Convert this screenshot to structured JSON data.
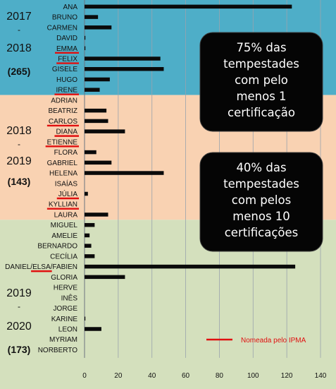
{
  "chart_data": {
    "type": "bar",
    "orientation": "horizontal",
    "grid": "vertical",
    "xlim": [
      0,
      140
    ],
    "xticks": [
      "0",
      "20",
      "40",
      "60",
      "80",
      "100",
      "120",
      "140"
    ],
    "categories": [
      "ANA",
      "BRUNO",
      "CARMEN",
      "DAVID",
      "EMMA",
      "FELIX",
      "GISELE",
      "HUGO",
      "IRENE",
      "ADRIAN",
      "BEATRIZ",
      "CARLOS",
      "DIANA",
      "ETIENNE",
      "FLORA",
      "GABRIEL",
      "HELENA",
      "ISAÍAS",
      "JÚLIA",
      "KYLLIAN",
      "LAURA",
      "MIGUEL",
      "AMELIE",
      "BERNARDO",
      "CECÍLIA",
      "DANIEL/ELSA/FABIEN",
      "GLORIA",
      "HERVE",
      "INÊS",
      "JORGE",
      "KARINE",
      "LEON",
      "MYRIAM",
      "NORBERTO"
    ],
    "values": [
      123,
      8,
      16,
      0.5,
      0.5,
      45,
      47,
      15,
      9,
      0,
      13,
      14,
      24,
      0,
      7,
      16,
      47,
      0,
      2,
      0,
      14,
      6,
      3,
      4,
      6,
      125,
      24,
      0,
      0,
      0,
      0.5,
      10,
      0,
      0
    ],
    "named_by_ipma": [
      "EMMA",
      "FELIX",
      "IRENE",
      "CARLOS",
      "DIANA",
      "ETIENNE",
      "JÚLIA",
      "KYLLIAN",
      "ELSA"
    ],
    "seasons": [
      {
        "years": [
          "2017",
          "-",
          "2018"
        ],
        "count": "(265)",
        "color": "#4eaec8"
      },
      {
        "years": [
          "2018",
          "-",
          "2019"
        ],
        "count": "(143)",
        "color": "#f9d2b2"
      },
      {
        "years": [
          "2019",
          "-",
          "2020"
        ],
        "count": "(173)",
        "color": "#d4e0bd"
      }
    ],
    "annotations": [
      {
        "lines": [
          "75% das",
          "tempestades",
          "com pelo",
          "menos 1",
          "certificação"
        ]
      },
      {
        "lines": [
          "40% das",
          "tempestades",
          "com pelos",
          "menos 10",
          "certificações"
        ]
      }
    ],
    "legend": {
      "label": "Nomeada pelo IPMA",
      "color": "#e01010",
      "position": "bottom-right"
    },
    "bar_color": "#0a0a0a"
  }
}
